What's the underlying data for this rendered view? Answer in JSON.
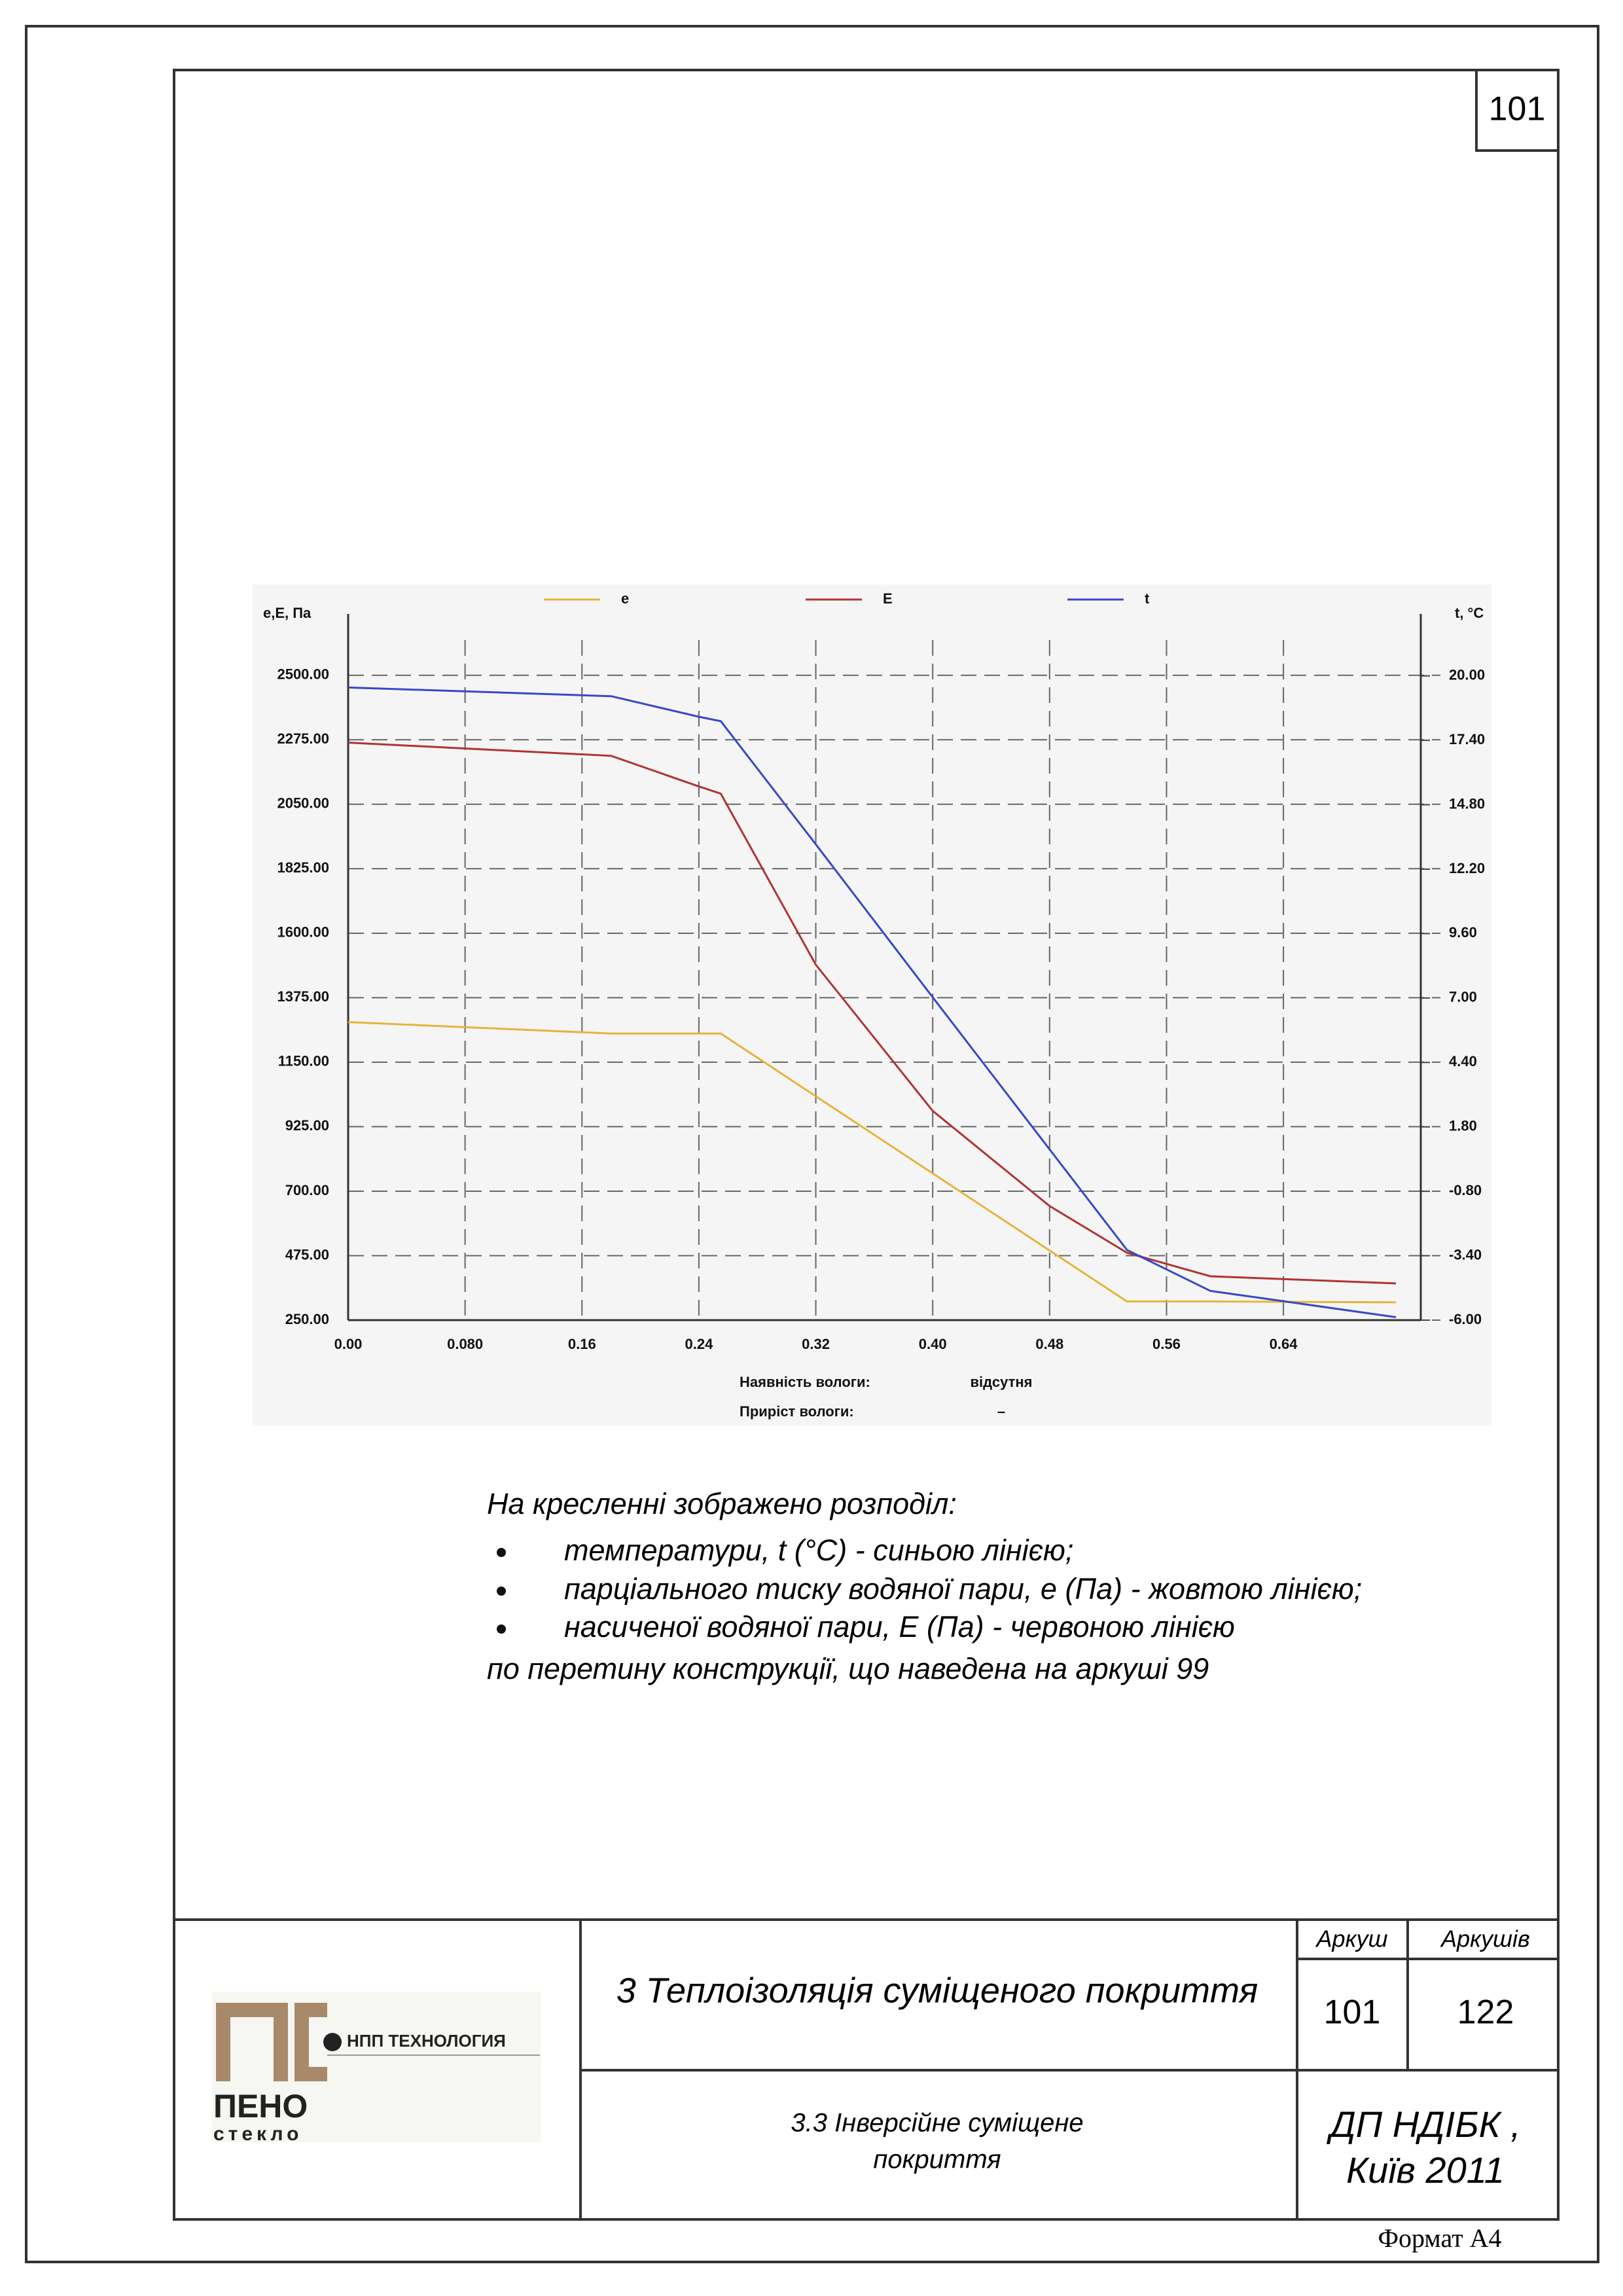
{
  "page_number": 101,
  "chart_data": {
    "type": "line",
    "y_label": "e,E, Па",
    "y2_label": "t, °C",
    "legend": "top",
    "grid": true,
    "x": [
      0,
      0.18,
      0.24,
      0.255,
      0.32,
      0.4,
      0.48,
      0.533,
      0.59,
      0.717
    ],
    "xlim": [
      0,
      0.734
    ],
    "xticks": [
      {
        "value": 0,
        "label": "0.00"
      },
      {
        "value": 0.08,
        "label": "0.080"
      },
      0.16,
      0.24,
      0.32,
      {
        "value": 0.4,
        "label": "0.40"
      },
      0.48,
      0.56,
      0.64
    ],
    "ylim": [
      250,
      2714
    ],
    "yticks": [
      {
        "value": 250,
        "label": "250.00"
      },
      {
        "value": 475,
        "label": "475.00"
      },
      {
        "value": 700,
        "label": "700.00"
      },
      {
        "value": 925,
        "label": "925.00"
      },
      {
        "value": 1150,
        "label": "1150.00"
      },
      {
        "value": 1375,
        "label": "1375.00"
      },
      {
        "value": 1600,
        "label": "1600.00"
      },
      {
        "value": 1825,
        "label": "1825.00"
      },
      {
        "value": 2050,
        "label": "2050.00"
      },
      {
        "value": 2275,
        "label": "2275.00"
      },
      {
        "value": 2500,
        "label": "2500.00"
      }
    ],
    "y2lim": [
      -6,
      22.5
    ],
    "y2ticks": [
      {
        "value": -6,
        "label": "-6.00"
      },
      {
        "value": -3.4,
        "label": "-3.40"
      },
      {
        "value": -0.8,
        "label": "-0.80"
      },
      {
        "value": 1.8,
        "label": "1.80"
      },
      {
        "value": 4.4,
        "label": "4.40"
      },
      {
        "value": 7,
        "label": "7.00"
      },
      {
        "value": 9.6,
        "label": "9.60"
      },
      {
        "value": 12.2,
        "label": "12.20"
      },
      {
        "value": 14.8,
        "label": "14.80"
      },
      {
        "value": 17.4,
        "label": "17.40"
      },
      {
        "value": 20,
        "label": "20.00"
      }
    ],
    "series": [
      {
        "name": "e",
        "color": "#e6b43c",
        "values": [
          1290,
          1250,
          1250,
          1250,
          1031,
          762,
          493,
          315,
          315,
          312
        ]
      },
      {
        "name": "E",
        "color": "#b03434",
        "values": [
          2265,
          2219,
          2112,
          2087,
          1490,
          980,
          648,
          485,
          403,
          378
        ]
      },
      {
        "name": "t",
        "color": "#3848c8",
        "axis": "y2",
        "values": [
          19.53,
          19.18,
          18.35,
          18.17,
          13.2,
          7.03,
          0.89,
          -3.17,
          -4.82,
          -5.88
        ]
      }
    ],
    "annotations": [
      {
        "label": "Наявність вологи:",
        "value": "відсутня"
      },
      {
        "label": "Приріст вологи:",
        "value": "–"
      }
    ]
  },
  "description": {
    "intro": "На кресленні зображено розподіл:",
    "items": [
      "температури, t (°C) - синьою лінією;",
      "парціального тиску водяної пари, e (Па) - жовтою лінією;",
      "насиченої водяної пари, E (Па) - червоною лінією"
    ],
    "outro": "по перетину конструкції, що наведена на аркуші 99"
  },
  "title_block": {
    "logo": {
      "company": "НПП ТЕХНОЛОГИЯ",
      "brand": "ПЕНО",
      "sub": "стекло"
    },
    "title": "3 Теплоізоляція суміщеного покриття",
    "subtitle": [
      "3.3 Інверсійне суміщене",
      "покриття"
    ],
    "sheet_label": "Аркуш",
    "sheets_label": "Аркушів",
    "sheet": 101,
    "sheets": 122,
    "organization": [
      "ДП НДІБК ,",
      "Київ 2011"
    ]
  },
  "format": "Формат А4"
}
